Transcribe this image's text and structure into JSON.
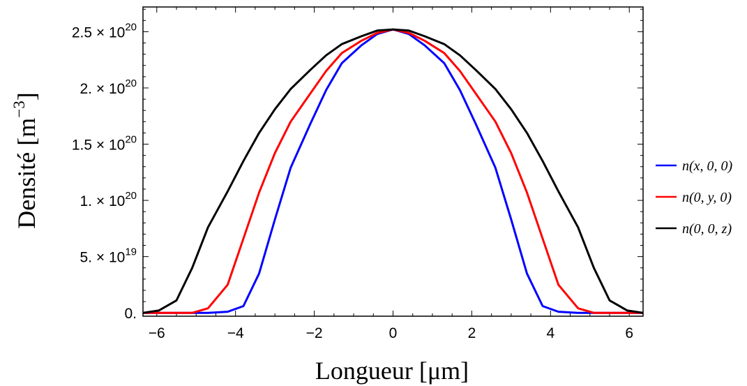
{
  "chart_data": {
    "type": "line",
    "xlabel": "Longueur [μm]",
    "ylabel": "Densité [m",
    "ylabel_sup": "−3",
    "ylabel_close": "]",
    "xlim": [
      -6.35,
      6.35
    ],
    "ylim": [
      -3e+18,
      2.72e+20
    ],
    "x_ticks": [
      {
        "value": -6,
        "label": "−6"
      },
      {
        "value": -4,
        "label": "−4"
      },
      {
        "value": -2,
        "label": "−2"
      },
      {
        "value": 0,
        "label": "0"
      },
      {
        "value": 2,
        "label": "2"
      },
      {
        "value": 4,
        "label": "4"
      },
      {
        "value": 6,
        "label": "6"
      }
    ],
    "y_ticks": [
      {
        "value": 0,
        "mantissa": "0.",
        "exponent": ""
      },
      {
        "value": 5e+19,
        "mantissa": "5. × 10",
        "exponent": "19"
      },
      {
        "value": 1e+20,
        "mantissa": "1. × 10",
        "exponent": "20"
      },
      {
        "value": 1.5e+20,
        "mantissa": "1.5 × 10",
        "exponent": "20"
      },
      {
        "value": 2e+20,
        "mantissa": "2. × 10",
        "exponent": "20"
      },
      {
        "value": 2.5e+20,
        "mantissa": "2.5 × 10",
        "exponent": "20"
      }
    ],
    "legend_position": "right",
    "series": [
      {
        "name": "n(x, 0, 0)",
        "color": "#0000ff",
        "x": [
          -6.35,
          -5.95,
          -5.1,
          -4.7,
          -4.2,
          -3.8,
          -3.4,
          -3.0,
          -2.6,
          -2.1,
          -1.7,
          -1.3,
          -0.8,
          -0.4,
          0,
          0.4,
          0.8,
          1.3,
          1.7,
          2.1,
          2.6,
          3.0,
          3.4,
          3.8,
          4.2,
          4.7,
          5.1,
          5.95,
          6.35
        ],
        "y": [
          0,
          0,
          0,
          0,
          1e+18,
          6e+18,
          3.5e+19,
          8.3e+19,
          1.29e+20,
          1.68e+20,
          1.98e+20,
          2.22e+20,
          2.38e+20,
          2.48e+20,
          2.52e+20,
          2.48e+20,
          2.38e+20,
          2.22e+20,
          1.98e+20,
          1.68e+20,
          1.29e+20,
          8.3e+19,
          3.5e+19,
          6e+18,
          1e+18,
          0,
          0,
          0,
          0
        ]
      },
      {
        "name": "n(0, y, 0)",
        "color": "#ff0000",
        "x": [
          -6.35,
          -5.95,
          -5.1,
          -4.7,
          -4.2,
          -3.8,
          -3.4,
          -3.0,
          -2.6,
          -2.1,
          -1.7,
          -1.3,
          -0.8,
          -0.4,
          0,
          0.4,
          0.8,
          1.3,
          1.7,
          2.1,
          2.6,
          3.0,
          3.4,
          3.8,
          4.2,
          4.7,
          5.1,
          5.95,
          6.35
        ],
        "y": [
          0,
          0,
          0,
          4e+18,
          2.5e+19,
          6.6e+19,
          1.07e+20,
          1.42e+20,
          1.7e+20,
          1.95e+20,
          2.15e+20,
          2.31e+20,
          2.42e+20,
          2.49e+20,
          2.52e+20,
          2.49e+20,
          2.42e+20,
          2.31e+20,
          2.15e+20,
          1.95e+20,
          1.7e+20,
          1.42e+20,
          1.07e+20,
          6.6e+19,
          2.5e+19,
          4e+18,
          0,
          0,
          0
        ]
      },
      {
        "name": "n(0, 0, z)",
        "color": "#000000",
        "x": [
          -6.35,
          -5.95,
          -5.5,
          -5.1,
          -4.7,
          -4.2,
          -3.8,
          -3.4,
          -3.0,
          -2.6,
          -2.1,
          -1.7,
          -1.3,
          -0.8,
          -0.4,
          0,
          0.4,
          0.8,
          1.3,
          1.7,
          2.1,
          2.6,
          3.0,
          3.4,
          3.8,
          4.2,
          4.7,
          5.1,
          5.5,
          5.95,
          6.35
        ],
        "y": [
          0,
          2e+18,
          1.1e+19,
          4e+19,
          7.6e+19,
          1.08e+20,
          1.35e+20,
          1.6e+20,
          1.81e+20,
          1.99e+20,
          2.16e+20,
          2.29e+20,
          2.39e+20,
          2.46e+20,
          2.51e+20,
          2.52e+20,
          2.51e+20,
          2.46e+20,
          2.39e+20,
          2.29e+20,
          2.16e+20,
          1.99e+20,
          1.81e+20,
          1.6e+20,
          1.35e+20,
          1.08e+20,
          7.6e+19,
          4e+19,
          1.1e+19,
          2e+18,
          0
        ]
      }
    ]
  }
}
